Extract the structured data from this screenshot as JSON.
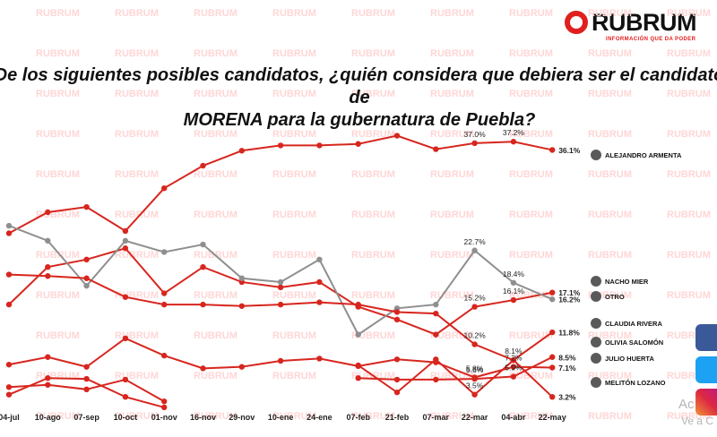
{
  "logo": {
    "word": "RUBRUM",
    "tagline": "INFORMACIÓN QUE DA PODER"
  },
  "watermark": "RUBRUM",
  "chart_data": {
    "type": "line",
    "title_lines": [
      "De los siguientes posibles candidatos, ¿quién considera que debiera ser  el candidato de",
      "MORENA para la gubernatura de Puebla?"
    ],
    "categories": [
      "04-jul",
      "10-ago",
      "07-sep",
      "10-oct",
      "01-nov",
      "16-nov",
      "29-nov",
      "10-ene",
      "24-ene",
      "07-feb",
      "21-feb",
      "07-mar",
      "22-mar",
      "04-abr",
      "22-may"
    ],
    "ylim": [
      0,
      42
    ],
    "grid": false,
    "series": [
      {
        "name": "ALEJANDRO ARMENTA",
        "color": "#d7261e",
        "values": [
          25.0,
          27.8,
          28.5,
          25.3,
          31.0,
          34.0,
          36.0,
          36.7,
          36.7,
          36.9,
          38.0,
          36.2,
          37.0,
          37.2,
          36.1
        ],
        "labels": [
          null,
          null,
          null,
          null,
          null,
          null,
          null,
          null,
          null,
          null,
          null,
          null,
          "37.0%",
          "37.2%",
          "36.1%"
        ]
      },
      {
        "name": "NACHO MIER",
        "color": "#d7261e",
        "values": [
          15.5,
          20.5,
          21.5,
          23.0,
          17.0,
          20.5,
          18.5,
          17.8,
          18.5,
          15.2,
          13.5,
          11.5,
          15.2,
          16.1,
          17.1
        ],
        "labels": [
          null,
          null,
          null,
          null,
          null,
          null,
          null,
          null,
          null,
          null,
          null,
          null,
          "15.2%",
          "16.1%",
          "17.1%"
        ]
      },
      {
        "name": "OTRO",
        "color": "#8f8f8f",
        "values": [
          26.0,
          24.0,
          18.0,
          24.0,
          22.5,
          23.5,
          19.0,
          18.5,
          21.5,
          11.5,
          15.0,
          15.5,
          22.7,
          18.4,
          16.2
        ],
        "labels": [
          null,
          null,
          null,
          null,
          null,
          null,
          null,
          null,
          null,
          null,
          null,
          null,
          "22.7%",
          "18.4%",
          "16.2%"
        ]
      },
      {
        "name": "CLAUDIA RIVERA",
        "color": "#d7261e",
        "values": [
          19.5,
          19.3,
          19.0,
          16.5,
          15.5,
          15.5,
          15.3,
          15.5,
          15.8,
          15.5,
          14.5,
          14.3,
          10.2,
          8.1,
          11.8
        ],
        "labels": [
          null,
          null,
          null,
          null,
          null,
          null,
          null,
          null,
          null,
          null,
          null,
          null,
          "10.2%",
          "8.1%",
          "11.8%"
        ]
      },
      {
        "name": "OLIVIA SALOMÓN",
        "color": "#d7261e",
        "values": [
          null,
          null,
          null,
          null,
          null,
          null,
          null,
          null,
          null,
          5.7,
          5.5,
          5.5,
          5.6,
          5.9,
          8.5
        ],
        "labels": [
          null,
          null,
          null,
          null,
          null,
          null,
          null,
          null,
          null,
          null,
          null,
          null,
          "5.6%",
          "5.9%",
          "8.5%"
        ]
      },
      {
        "name": "JULIO HUERTA",
        "color": "#d7261e",
        "values": [
          7.5,
          8.5,
          7.2,
          11.0,
          8.7,
          7.0,
          7.2,
          8.0,
          8.3,
          7.3,
          8.2,
          7.8,
          5.8,
          7.2,
          7.1
        ],
        "labels": [
          null,
          null,
          null,
          null,
          null,
          null,
          null,
          null,
          null,
          null,
          null,
          null,
          "5.8%",
          "7.2%",
          "7.1%"
        ]
      },
      {
        "name": "MELITÓN LOZANO",
        "color": "#d7261e",
        "values": [
          4.5,
          4.8,
          4.2,
          5.5,
          2.6,
          null,
          null,
          null,
          null,
          7.4,
          3.8,
          8.2,
          3.5,
          8.1,
          3.2
        ],
        "labels": [
          null,
          null,
          null,
          null,
          null,
          null,
          null,
          null,
          null,
          null,
          null,
          null,
          "3.5%",
          null,
          "3.2%"
        ]
      },
      {
        "name": "",
        "color": "#d7261e",
        "values": [
          3.5,
          5.7,
          5.6,
          3.2,
          1.8,
          null,
          null,
          null,
          null,
          null,
          null,
          null,
          null,
          null,
          null
        ],
        "labels": []
      }
    ]
  }
}
